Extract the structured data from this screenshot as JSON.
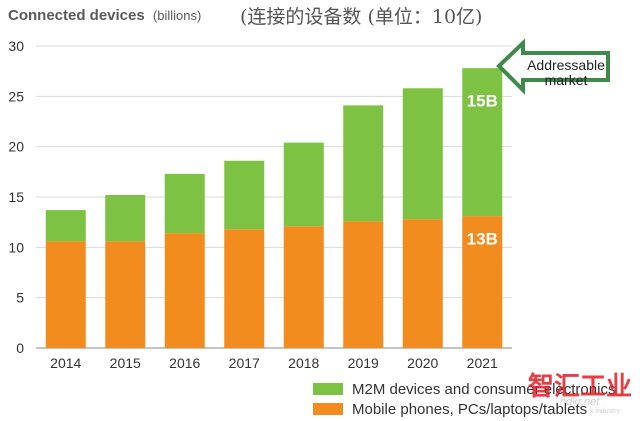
{
  "title": {
    "main": "Connected devices",
    "units": "(billions)",
    "cn": "(连接的设备数 (单位：10亿)"
  },
  "chart_data": {
    "type": "bar",
    "stacked": true,
    "categories": [
      "2014",
      "2015",
      "2016",
      "2017",
      "2018",
      "2019",
      "2020",
      "2021"
    ],
    "series": [
      {
        "name": "Mobile phones, PCs/laptops/tablets",
        "color": "#f28c1e",
        "values": [
          10.6,
          10.6,
          11.4,
          11.8,
          12.1,
          12.6,
          12.8,
          13.1
        ]
      },
      {
        "name": "M2M devices and consumer electronics",
        "color": "#7dc242",
        "values": [
          3.1,
          4.6,
          5.9,
          6.8,
          8.3,
          11.5,
          13.0,
          14.7
        ]
      }
    ],
    "ylim": [
      0,
      30
    ],
    "yticks": [
      "0",
      "5",
      "10",
      "15",
      "20",
      "25",
      "30"
    ],
    "grid": true,
    "legend_position": "bottom-right",
    "annotations": {
      "bar_2021_top": "15B",
      "bar_2021_bottom": "13B",
      "callout_line1": "Addressable",
      "callout_line2": "market"
    }
  },
  "watermark": {
    "cn": "智汇工业",
    "en": "hdkr.net",
    "sub": "k industry"
  }
}
